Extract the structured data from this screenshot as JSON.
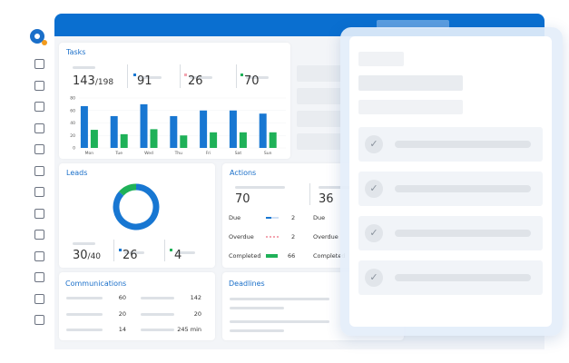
{
  "tasks": {
    "title": "Tasks",
    "stats": [
      {
        "value": 143,
        "total": "/198"
      },
      {
        "value": 91
      },
      {
        "value": 26
      },
      {
        "value": 70
      }
    ],
    "chart": {
      "type": "bar",
      "categories": [
        "Mon",
        "Tue",
        "Wed",
        "Thu",
        "Fri",
        "Sat",
        "Sun"
      ],
      "series": [
        {
          "color": "#1877d2",
          "values": [
            67,
            51,
            70,
            51,
            60,
            60,
            55
          ]
        },
        {
          "color": "#1fb158",
          "values": [
            29,
            22,
            30,
            20,
            25,
            25,
            25
          ]
        }
      ],
      "ylim": [
        0,
        80
      ],
      "yticks": [
        0,
        20,
        40,
        60,
        80
      ]
    }
  },
  "leads": {
    "title": "Leads",
    "stats": [
      {
        "value": 30,
        "total": "/40"
      },
      {
        "value": 26
      },
      {
        "value": 4
      }
    ],
    "colors": [
      "#1877d2",
      "#1fb158"
    ]
  },
  "actions": {
    "title": "Actions",
    "columns": [
      {
        "value": 70,
        "rows": [
          {
            "label": "Due",
            "value": 2
          },
          {
            "label": "Overdue",
            "value": 2
          },
          {
            "label": "Completed",
            "value": 66
          }
        ]
      },
      {
        "value": 36,
        "rows": [
          {
            "label": "Due"
          },
          {
            "label": "Overdue"
          },
          {
            "label": "Completed"
          }
        ]
      }
    ]
  },
  "communications": {
    "title": "Communications",
    "rows": [
      [
        60,
        142
      ],
      [
        20,
        20
      ],
      [
        14,
        "245 min"
      ]
    ]
  },
  "deadlines": {
    "title": "Deadlines"
  }
}
